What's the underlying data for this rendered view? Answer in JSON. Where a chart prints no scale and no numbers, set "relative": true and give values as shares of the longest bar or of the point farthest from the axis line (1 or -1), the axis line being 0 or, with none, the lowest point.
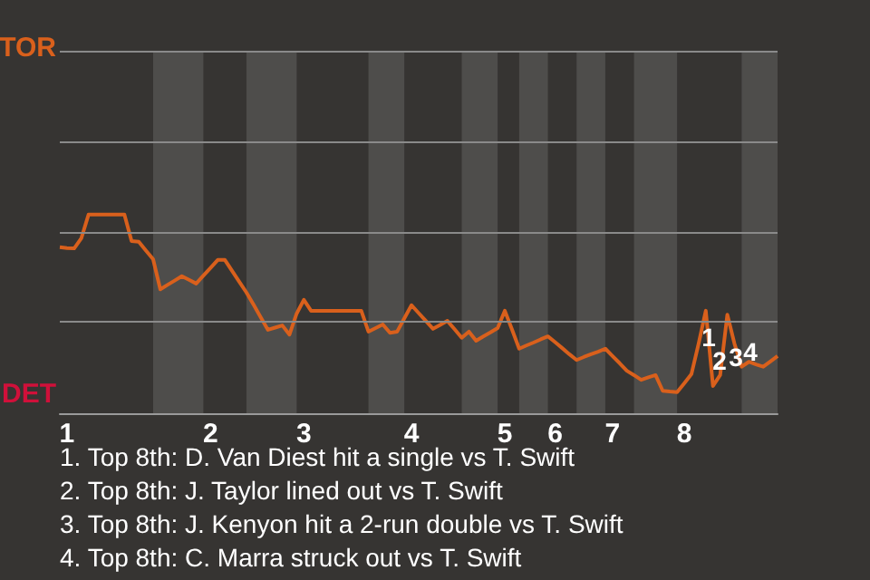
{
  "chart_data": {
    "type": "line",
    "relative": true,
    "categories": [
      null,
      "1",
      null,
      null,
      null,
      null,
      null,
      null,
      null,
      null,
      null,
      null,
      null,
      null,
      null,
      null,
      null,
      null,
      null,
      null,
      null,
      "2",
      null,
      null,
      null,
      null,
      null,
      null,
      null,
      null,
      null,
      null,
      null,
      null,
      "3",
      null,
      null,
      null,
      null,
      null,
      null,
      null,
      null,
      null,
      null,
      null,
      null,
      null,
      null,
      "4",
      null,
      null,
      null,
      null,
      null,
      null,
      null,
      null,
      null,
      null,
      null,
      null,
      "5",
      null,
      null,
      null,
      null,
      null,
      null,
      "6",
      null,
      null,
      null,
      null,
      null,
      null,
      null,
      "7",
      null,
      null,
      null,
      null,
      null,
      null,
      null,
      null,
      null,
      "8",
      null,
      null,
      null,
      null,
      null,
      null,
      null,
      null,
      null,
      null,
      null,
      null,
      null
    ],
    "ref_lines": [
      {
        "axis": "y",
        "value": 0.456
      },
      {
        "axis": "y",
        "value": 0.912
      },
      {
        "axis": "y",
        "value": 1.369
      },
      {
        "axis": "y",
        "value": 1.825
      }
    ],
    "series": [
      {
        "color": "#d9601c",
        "values": [
          0.836,
          0.832,
          0.83,
          0.881,
          1,
          1,
          1,
          1,
          1,
          1,
          0.867,
          0.863,
          0.819,
          0.776,
          0.624,
          0.646,
          0.668,
          0.69,
          0.672,
          0.653,
          0.693,
          0.732,
          0.772,
          0.772,
          0.717,
          0.662,
          0.608,
          0.546,
          0.482,
          0.42,
          0.431,
          0.442,
          0.396,
          0.502,
          0.571,
          0.516,
          0.516,
          0.516,
          0.516,
          0.516,
          0.516,
          0.516,
          0.516,
          0.411,
          0.429,
          0.447,
          0.405,
          0.411,
          0.478,
          0.544,
          0.504,
          0.465,
          0.425,
          0.445,
          0.465,
          0.423,
          0.38,
          0.411,
          0.365,
          0.387,
          0.407,
          0.429,
          0.516,
          0.422,
          0.325,
          0.341,
          0.356,
          0.372,
          0.387,
          0.358,
          0.328,
          0.297,
          0.268,
          0.283,
          0.297,
          0.31,
          0.325,
          0.288,
          0.252,
          0.214,
          0.192,
          0.168,
          0.181,
          0.192,
          0.113,
          0.109,
          0.106,
          0.151,
          0.197,
          0.35,
          0.516,
          0.137,
          0.192,
          0.496,
          0.35,
          0.234,
          0.259,
          0.246,
          0.234,
          0.261,
          0.288
        ]
      }
    ],
    "marker": "none",
    "annotations": [
      "TOR",
      "DET",
      "1",
      "2",
      "3",
      "4",
      "1. Top 8th: D. Van Diest hit a single vs T. Swift",
      "2. Top 8th: J. Taylor lined out vs T. Swift",
      "3. Top 8th: J. Kenyon hit a 2-run double vs T. Swift",
      "4. Top 8th: C. Marra struck out vs T. Swift"
    ]
  }
}
